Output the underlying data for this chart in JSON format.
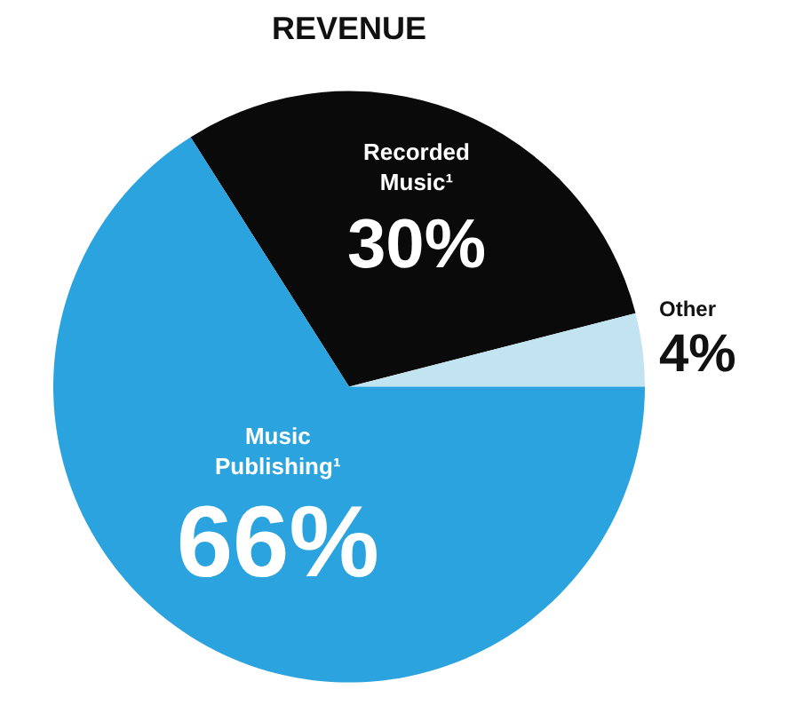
{
  "chart_data": {
    "type": "pie",
    "title": "REVENUE",
    "categories": [
      "Recorded Music¹",
      "Other",
      "Music Publishing¹"
    ],
    "values": [
      30,
      4,
      66
    ],
    "colors": [
      "#0a0a0a",
      "#c2e4f1",
      "#2aa3de"
    ],
    "value_labels": [
      "30%",
      "4%",
      "66%"
    ],
    "legend": false
  }
}
